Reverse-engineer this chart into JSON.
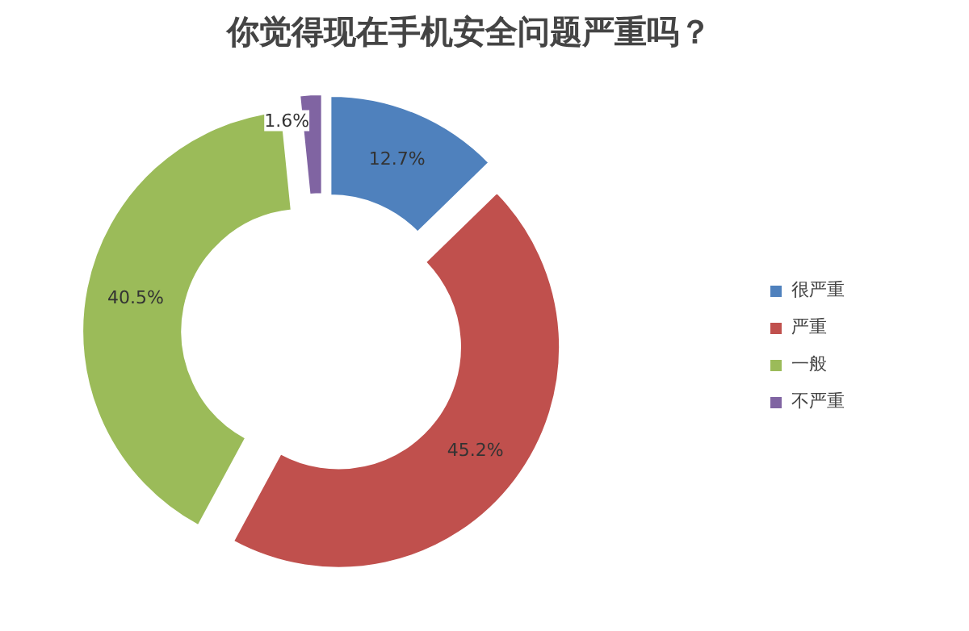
{
  "chart_data": {
    "type": "donut",
    "title": "你觉得现在手机安全问题严重吗？",
    "categories": [
      "很严重",
      "严重",
      "一般",
      "不严重"
    ],
    "values": [
      12.7,
      45.2,
      40.5,
      1.6
    ],
    "colors": [
      "#4f81bd",
      "#c0504d",
      "#9bbb59",
      "#8064a2"
    ],
    "value_labels": [
      "12.7%",
      "45.2%",
      "40.5%",
      "1.6%"
    ],
    "legend": "right"
  }
}
